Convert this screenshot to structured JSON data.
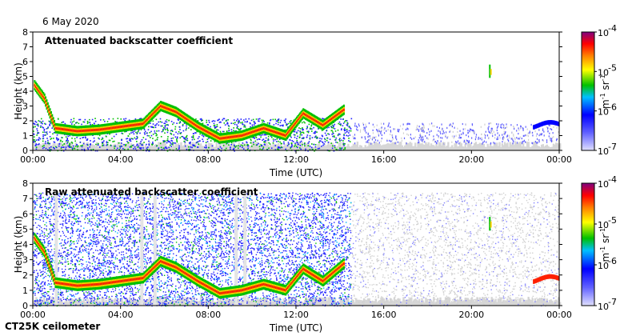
{
  "header": {
    "date": "6 May 2020"
  },
  "footer": {
    "instrument": "CT25K ceilometer"
  },
  "colors": {
    "low": "#c0c0f0",
    "mid": "#00c000",
    "high": "#ff0000",
    "top": "#800080",
    "noise": "#d0d0d0"
  },
  "chart_data": [
    {
      "type": "heatmap",
      "title": "Attenuated backscatter coefficient",
      "xlabel": "Time (UTC)",
      "ylabel": "Height (km)",
      "x_ticks": [
        "00:00",
        "04:00",
        "08:00",
        "12:00",
        "16:00",
        "20:00",
        "00:00"
      ],
      "y_ticks": [
        "0",
        "1",
        "2",
        "3",
        "4",
        "5",
        "6",
        "7",
        "8"
      ],
      "xlim_hours": [
        0,
        24
      ],
      "ylim_km": [
        0,
        8
      ],
      "colorbar": {
        "ticks": [
          "10",
          "10",
          "10",
          "10"
        ],
        "exponents": [
          "-4",
          "-5",
          "-6",
          "-7"
        ],
        "unit": "m",
        "unit_exp1": "-1",
        "unit2": "sr",
        "unit_exp2": "-1",
        "scale": "log",
        "range": [
          1e-07,
          0.0001
        ]
      },
      "layer_trace": [
        {
          "t": 0.0,
          "h": 4.5
        },
        {
          "t": 0.5,
          "h": 3.5
        },
        {
          "t": 1.0,
          "h": 1.5
        },
        {
          "t": 2.0,
          "h": 1.3
        },
        {
          "t": 3.0,
          "h": 1.4
        },
        {
          "t": 4.0,
          "h": 1.6
        },
        {
          "t": 5.0,
          "h": 1.8
        },
        {
          "t": 5.8,
          "h": 3.0
        },
        {
          "t": 6.5,
          "h": 2.6
        },
        {
          "t": 7.5,
          "h": 1.6
        },
        {
          "t": 8.5,
          "h": 0.8
        },
        {
          "t": 9.5,
          "h": 1.0
        },
        {
          "t": 10.5,
          "h": 1.5
        },
        {
          "t": 11.5,
          "h": 1.0
        },
        {
          "t": 12.3,
          "h": 2.5
        },
        {
          "t": 13.2,
          "h": 1.7
        },
        {
          "t": 14.2,
          "h": 2.8
        }
      ]
    },
    {
      "type": "heatmap",
      "title": "Raw attenuated backscatter coefficient",
      "xlabel": "Time (UTC)",
      "ylabel": "Height (km)",
      "x_ticks": [
        "00:00",
        "04:00",
        "08:00",
        "12:00",
        "16:00",
        "20:00",
        "00:00"
      ],
      "y_ticks": [
        "0",
        "1",
        "2",
        "3",
        "4",
        "5",
        "6",
        "7",
        "8"
      ],
      "xlim_hours": [
        0,
        24
      ],
      "ylim_km": [
        0,
        8
      ],
      "colorbar": {
        "ticks": [
          "10",
          "10",
          "10",
          "10"
        ],
        "exponents": [
          "-4",
          "-5",
          "-6",
          "-7"
        ],
        "unit": "m",
        "unit_exp1": "-1",
        "unit2": "sr",
        "unit_exp2": "-1",
        "scale": "log",
        "range": [
          1e-07,
          0.0001
        ]
      },
      "layer_trace": [
        {
          "t": 0.0,
          "h": 4.5
        },
        {
          "t": 0.5,
          "h": 3.5
        },
        {
          "t": 1.0,
          "h": 1.5
        },
        {
          "t": 2.0,
          "h": 1.3
        },
        {
          "t": 3.0,
          "h": 1.4
        },
        {
          "t": 4.0,
          "h": 1.6
        },
        {
          "t": 5.0,
          "h": 1.8
        },
        {
          "t": 5.8,
          "h": 2.9
        },
        {
          "t": 6.5,
          "h": 2.5
        },
        {
          "t": 7.5,
          "h": 1.6
        },
        {
          "t": 8.5,
          "h": 0.8
        },
        {
          "t": 9.5,
          "h": 1.0
        },
        {
          "t": 10.5,
          "h": 1.4
        },
        {
          "t": 11.5,
          "h": 1.0
        },
        {
          "t": 12.3,
          "h": 2.4
        },
        {
          "t": 13.2,
          "h": 1.6
        },
        {
          "t": 14.2,
          "h": 2.8
        }
      ]
    }
  ]
}
